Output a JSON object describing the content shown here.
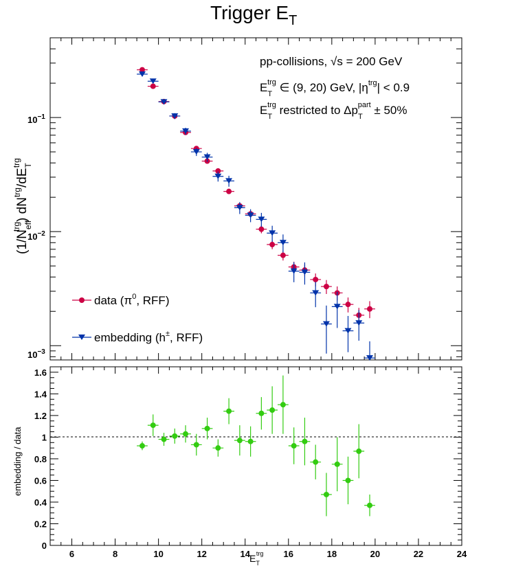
{
  "chart_data": [
    {
      "type": "scatter",
      "title": "Trigger E_T",
      "ylabel": "(1/N_eff^trg) dN^trg/dE_T^trg",
      "yscale": "log",
      "ylim": [
        0.00075,
        0.5
      ],
      "xlim": [
        5,
        24
      ],
      "y_tick_labels": [
        "10^-3",
        "10^-2",
        "10^-1"
      ],
      "annotations": [
        "pp-collisions, √s = 200 GeV",
        "E_T^trg ∈ (9, 20) GeV, |η^trg| < 0.9",
        "E_T^trg restricted to Δp_T^part ± 50%"
      ],
      "legend_position": "bottom-left",
      "series": [
        {
          "name": "data (π⁰, RFF)",
          "color": "#cc0044",
          "marker": "circle",
          "x": [
            9.25,
            9.75,
            10.25,
            10.75,
            11.25,
            11.75,
            12.25,
            12.75,
            13.25,
            13.75,
            14.25,
            14.75,
            15.25,
            15.75,
            16.25,
            16.75,
            17.25,
            17.75,
            18.25,
            18.75,
            19.25,
            19.75
          ],
          "y": [
            0.262,
            0.188,
            0.138,
            0.103,
            0.074,
            0.0535,
            0.0415,
            0.034,
            0.0225,
            0.0168,
            0.0143,
            0.0105,
            0.0077,
            0.0062,
            0.0049,
            0.0046,
            0.0038,
            0.0033,
            0.0029,
            0.0023,
            0.00185,
            0.0021
          ],
          "yerr_rel": [
            0.02,
            0.02,
            0.02,
            0.03,
            0.03,
            0.04,
            0.04,
            0.05,
            0.05,
            0.06,
            0.07,
            0.08,
            0.09,
            0.1,
            0.11,
            0.12,
            0.13,
            0.14,
            0.14,
            0.15,
            0.16,
            0.17
          ]
        },
        {
          "name": "embedding (h±, RFF)",
          "color": "#0033aa",
          "marker": "triangle-down",
          "x": [
            9.25,
            9.75,
            10.25,
            10.75,
            11.25,
            11.75,
            12.25,
            12.75,
            13.25,
            13.75,
            14.25,
            14.75,
            15.25,
            15.75,
            16.25,
            16.75,
            17.25,
            17.75,
            18.25,
            18.75,
            19.25,
            19.75
          ],
          "y": [
            0.24,
            0.208,
            0.137,
            0.103,
            0.076,
            0.05,
            0.045,
            0.0305,
            0.0278,
            0.0162,
            0.0139,
            0.0128,
            0.0097,
            0.008,
            0.0045,
            0.0044,
            0.0029,
            0.00155,
            0.0022,
            0.00135,
            0.00158,
            0.00078
          ],
          "yerr_rel": [
            0.04,
            0.04,
            0.05,
            0.06,
            0.07,
            0.08,
            0.09,
            0.1,
            0.11,
            0.12,
            0.13,
            0.14,
            0.16,
            0.18,
            0.2,
            0.22,
            0.25,
            0.45,
            0.35,
            0.35,
            0.3,
            0.4
          ]
        }
      ]
    },
    {
      "type": "scatter",
      "xlabel": "E_T^trg",
      "ylabel": "embedding / data",
      "xlim": [
        5,
        24
      ],
      "ylim": [
        0,
        1.65
      ],
      "x_ticks": [
        6,
        8,
        10,
        12,
        14,
        16,
        18,
        20,
        22,
        24
      ],
      "y_ticks": [
        0,
        0.2,
        0.4,
        0.6,
        0.8,
        1,
        1.2,
        1.4,
        1.6
      ],
      "reference_line": 1,
      "series": [
        {
          "name": "embedding / data",
          "color": "#33cc11",
          "marker": "circle",
          "x": [
            9.25,
            9.75,
            10.25,
            10.75,
            11.25,
            11.75,
            12.25,
            12.75,
            13.25,
            13.75,
            14.25,
            14.75,
            15.25,
            15.75,
            16.25,
            16.75,
            17.25,
            17.75,
            18.25,
            18.75,
            19.25,
            19.75
          ],
          "y": [
            0.92,
            1.11,
            0.98,
            1.01,
            1.03,
            0.93,
            1.08,
            0.9,
            1.24,
            0.97,
            0.96,
            1.22,
            1.25,
            1.3,
            0.92,
            0.96,
            0.77,
            0.47,
            0.75,
            0.6,
            0.87,
            0.37
          ],
          "yerr": [
            0.04,
            0.1,
            0.06,
            0.07,
            0.08,
            0.1,
            0.1,
            0.08,
            0.12,
            0.14,
            0.14,
            0.15,
            0.22,
            0.27,
            0.17,
            0.22,
            0.16,
            0.2,
            0.25,
            0.22,
            0.25,
            0.1
          ]
        }
      ]
    }
  ]
}
